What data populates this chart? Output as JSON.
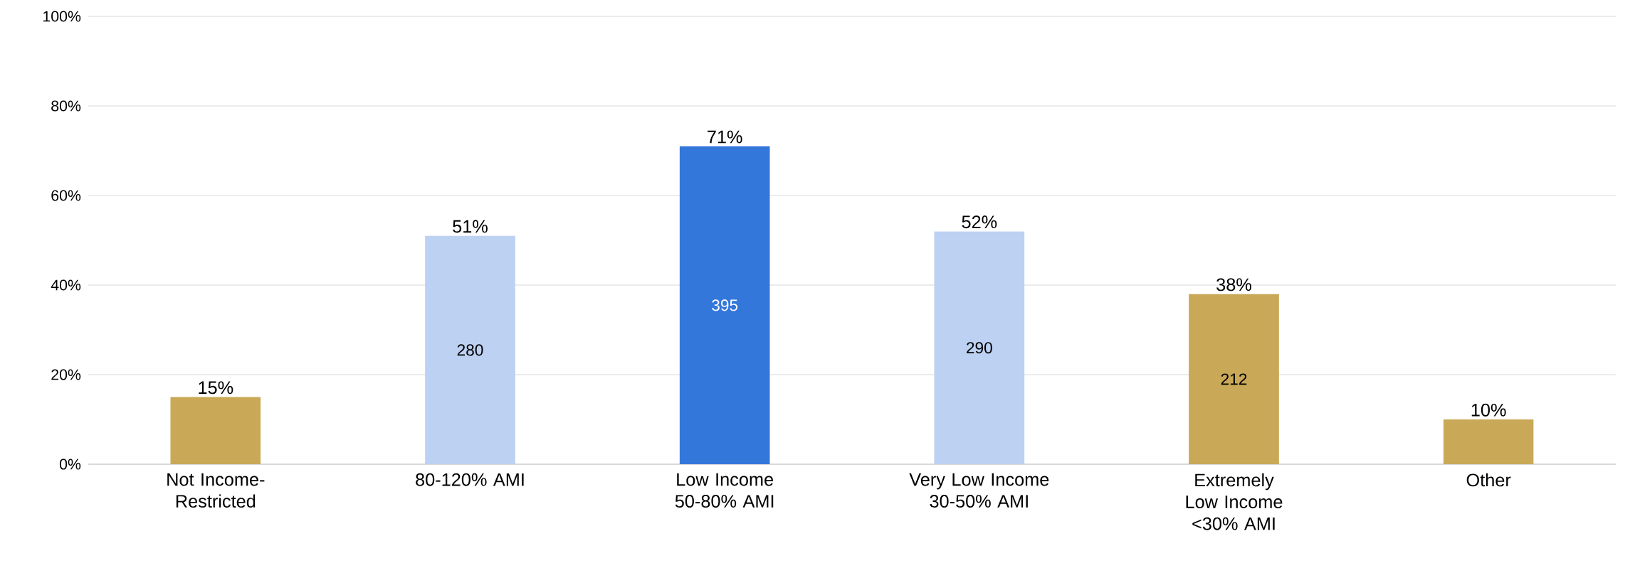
{
  "chart_data": {
    "type": "bar",
    "categories": [
      "Not Income-Restricted",
      "80-120% AMI",
      "Low Income 50-80% AMI",
      "Very Low Income 30-50% AMI",
      "Extremely Low Income <30% AMI",
      "Other"
    ],
    "values": [
      15,
      51,
      71,
      52,
      38,
      10
    ],
    "value_labels": [
      "15%",
      "51%",
      "71%",
      "52%",
      "38%",
      "10%"
    ],
    "colors": [
      "#c9a957",
      "#bdd1f2",
      "#3477db",
      "#bdd1f2",
      "#c9a957",
      "#c9a957"
    ],
    "ylim": [
      0,
      100
    ],
    "yticks": [
      {
        "value": 0,
        "label": "0%"
      },
      {
        "value": 20,
        "label": "20%"
      },
      {
        "value": 40,
        "label": "40%"
      },
      {
        "value": 60,
        "label": "60%"
      },
      {
        "value": 80,
        "label": "80%"
      },
      {
        "value": 100,
        "label": "100%"
      }
    ],
    "grid": "y",
    "annotations": [
      "280",
      "395",
      "290",
      "212"
    ]
  }
}
